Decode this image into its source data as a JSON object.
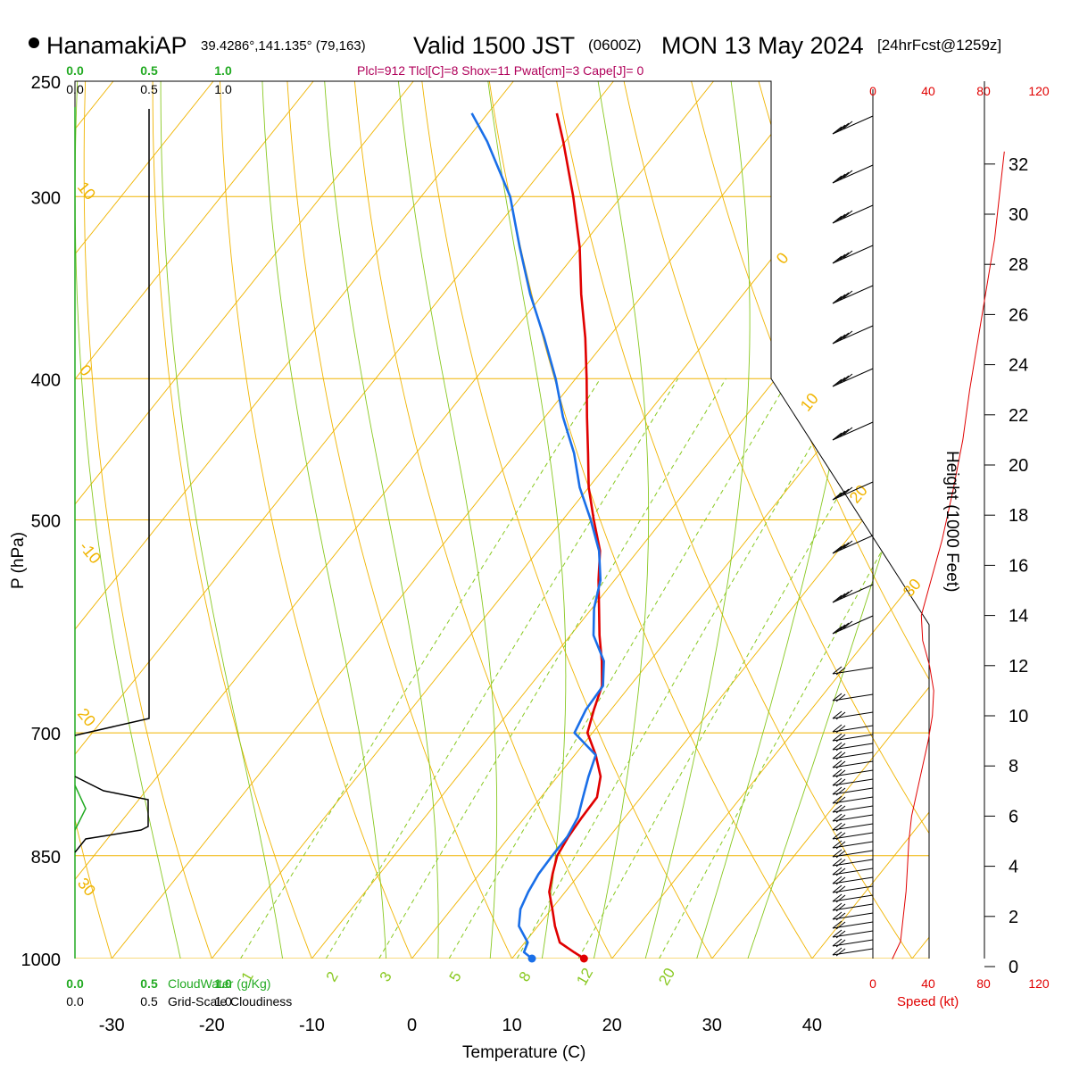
{
  "header": {
    "station": "HanamakiAP",
    "coords": "39.4286°,141.135° (79,163)",
    "valid": "Valid 1500 JST",
    "zulu": "(0600Z)",
    "date": "MON 13 May 2024",
    "fcst": "[24hrFcst@1259z]",
    "params": "Plcl=912 Tlcl[C]=8 Shox=11 Pwat[cm]=3 Cape[J]= 0"
  },
  "colors": {
    "temperature": "#e00000",
    "dewpoint": "#1a6fe8",
    "isotherm": "#f0b400",
    "dry_adiabat": "#f0b400",
    "moist_adiabat": "#88c820",
    "mixing_ratio": "#88c820",
    "cloud_water": "#22aa22",
    "speed": "#e00000"
  },
  "axes": {
    "pressure_label": "P (hPa)",
    "temperature_label": "Temperature (C)",
    "height_label": "Height (1000 Feet)",
    "speed_label": "Speed (kt)",
    "cloud_water_label": "CloudWater (g/Kg)",
    "cloudiness_label": "Grid-Scale Cloudiness",
    "pressure_ticks": [
      "250",
      "300",
      "400",
      "500",
      "700",
      "850",
      "1000"
    ],
    "temperature_ticks": [
      "-30",
      "-20",
      "-10",
      "0",
      "10",
      "20",
      "30",
      "40"
    ],
    "height_ticks": [
      "0",
      "2",
      "4",
      "6",
      "8",
      "10",
      "12",
      "14",
      "16",
      "18",
      "20",
      "22",
      "24",
      "26",
      "28",
      "30",
      "32"
    ],
    "speed_ticks": [
      "0",
      "40",
      "80",
      "120"
    ],
    "cloud_ticks": [
      "0.0",
      "0.5",
      "1.0"
    ],
    "cloudiness_ticks": [
      "0.0",
      "0.5",
      "1.0"
    ],
    "mixing_ratio_labels": [
      "1",
      "2",
      "3",
      "5",
      "8",
      "12",
      "20"
    ],
    "dry_adiabat_labels": [
      "-10",
      "0",
      "10",
      "20",
      "30",
      "0",
      "10",
      "20",
      "30"
    ]
  },
  "chart_data": {
    "type": "line",
    "title": "HanamakiAP Valid 1500 JST (0600Z) MON 13 May 2024 [24hrFcst@1259z]",
    "xlabel": "Temperature (C)",
    "ylabel": "P (hPa)",
    "ylog": true,
    "ylim": [
      1000,
      250
    ],
    "xlim": [
      -30,
      40
    ],
    "series": [
      {
        "name": "Temperature",
        "pressure": [
          1000,
          990,
          975,
          950,
          925,
          900,
          875,
          850,
          825,
          800,
          775,
          750,
          725,
          700,
          675,
          650,
          625,
          600,
          575,
          550,
          525,
          500,
          475,
          450,
          425,
          400,
          375,
          350,
          325,
          300,
          275,
          263
        ],
        "values": [
          17.2,
          15.7,
          13.5,
          11.7,
          10.1,
          8.4,
          7.3,
          6.3,
          5.9,
          5.7,
          5.6,
          4.3,
          2.1,
          -0.5,
          -1.7,
          -2.8,
          -4.8,
          -7.1,
          -9.3,
          -11.6,
          -13.8,
          -16.9,
          -20.0,
          -22.8,
          -25.8,
          -28.9,
          -32.3,
          -36.2,
          -40.1,
          -44.8,
          -50.2,
          -53.1
        ]
      },
      {
        "name": "Dewpoint",
        "pressure": [
          1000,
          990,
          975,
          950,
          925,
          900,
          875,
          850,
          825,
          800,
          775,
          750,
          725,
          700,
          675,
          650,
          625,
          600,
          575,
          550,
          525,
          500,
          475,
          450,
          425,
          400,
          375,
          350,
          325,
          300,
          275,
          263
        ],
        "values": [
          12.0,
          10.7,
          10.3,
          8.1,
          6.9,
          6.3,
          5.9,
          5.8,
          5.8,
          5.3,
          4.2,
          3.1,
          2.1,
          -1.8,
          -2.5,
          -2.7,
          -4.6,
          -7.7,
          -9.8,
          -11.4,
          -13.9,
          -17.2,
          -20.9,
          -24.2,
          -28.2,
          -32.0,
          -36.4,
          -41.3,
          -46.1,
          -51.1,
          -57.8,
          -61.6
        ]
      }
    ],
    "wind_speed_kt": {
      "height_kft": [
        0.3,
        1,
        2,
        3,
        4,
        5,
        6,
        7,
        8,
        9,
        10,
        11,
        12,
        13,
        14,
        15,
        17,
        19,
        21,
        23,
        25,
        27,
        29,
        31,
        32.5
      ],
      "values": [
        14,
        20,
        22,
        24,
        25,
        26,
        28,
        32,
        36,
        40,
        43,
        44,
        41,
        36,
        35,
        40,
        50,
        58,
        65,
        70,
        76,
        82,
        88,
        92,
        95
      ]
    }
  }
}
